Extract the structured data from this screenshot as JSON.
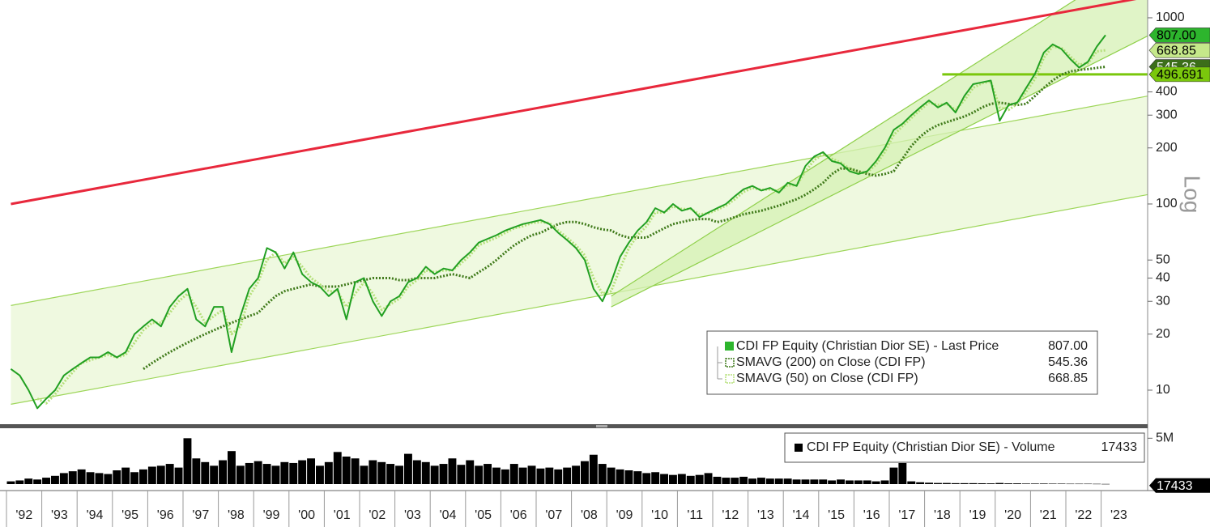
{
  "chart_data": [
    {
      "type": "line",
      "log_scale": true,
      "scale_label": "Log",
      "categories": [
        "'92",
        null,
        null,
        null,
        "'93",
        null,
        null,
        null,
        "'94",
        null,
        null,
        null,
        "'95",
        null,
        null,
        null,
        "'96",
        null,
        null,
        null,
        "'97",
        null,
        null,
        null,
        "'98",
        null,
        null,
        null,
        "'99",
        null,
        null,
        null,
        "'00",
        null,
        null,
        null,
        "'01",
        null,
        null,
        null,
        "'02",
        null,
        null,
        null,
        "'03",
        null,
        null,
        null,
        "'04",
        null,
        null,
        null,
        "'05",
        null,
        null,
        null,
        "'06",
        null,
        null,
        null,
        "'07",
        null,
        null,
        null,
        "'08",
        null,
        null,
        null,
        "'09",
        null,
        null,
        null,
        "'10",
        null,
        null,
        null,
        "'11",
        null,
        null,
        null,
        "'12",
        null,
        null,
        null,
        "'13",
        null,
        null,
        null,
        "'14",
        null,
        null,
        null,
        "'15",
        null,
        null,
        null,
        "'16",
        null,
        null,
        null,
        "'17",
        null,
        null,
        null,
        "'18",
        null,
        null,
        null,
        "'19",
        null,
        null,
        null,
        "'20",
        null,
        null,
        null,
        "'21",
        null,
        null,
        null,
        "'22",
        null,
        null,
        null,
        "'23"
      ],
      "ylim": [
        6.5,
        1246
      ],
      "yticks": [
        10,
        20,
        30,
        40,
        50,
        100,
        200,
        300,
        400,
        1000
      ],
      "series": [
        {
          "name": "CDI FP Equity (Christian Dior SE) - Last Price",
          "color": "#22a022",
          "label_color": "#2db52d",
          "label_text": "#000000",
          "last": {
            "value": 807,
            "label": "807.00"
          },
          "values": [
            13,
            12,
            10,
            8,
            9,
            10,
            12,
            13,
            14,
            15,
            15,
            16,
            15,
            16,
            20,
            22,
            24,
            22,
            28,
            32,
            35,
            24,
            22,
            28,
            28,
            16,
            25,
            35,
            40,
            58,
            55,
            45,
            55,
            42,
            38,
            36,
            32,
            35,
            24,
            38,
            40,
            30,
            25,
            30,
            32,
            38,
            40,
            46,
            42,
            45,
            44,
            50,
            55,
            62,
            65,
            68,
            72,
            75,
            78,
            80,
            82,
            78,
            70,
            64,
            58,
            50,
            35,
            30,
            38,
            52,
            62,
            72,
            80,
            95,
            90,
            100,
            92,
            95,
            85,
            90,
            95,
            100,
            110,
            120,
            125,
            118,
            122,
            115,
            130,
            125,
            160,
            180,
            190,
            170,
            165,
            150,
            145,
            150,
            170,
            200,
            250,
            270,
            300,
            330,
            360,
            330,
            350,
            310,
            380,
            440,
            450,
            460,
            280,
            340,
            350,
            420,
            500,
            650,
            720,
            680,
            600,
            540,
            580,
            700,
            807
          ]
        },
        {
          "name": "SMAVG (200)  on Close (CDI FP)",
          "color": "#3f7a1a",
          "dotted": true,
          "label_color": "#3c6e1a",
          "label_text": "#ffffff",
          "last": {
            "value": 545.36,
            "label": "545.36"
          },
          "values": [
            null,
            null,
            null,
            null,
            null,
            null,
            null,
            null,
            null,
            null,
            null,
            null,
            null,
            null,
            null,
            13,
            14,
            15,
            16,
            17,
            18,
            19,
            20,
            21,
            22,
            23,
            24,
            25,
            26,
            29,
            32,
            34,
            35,
            36,
            37,
            36,
            36,
            36,
            37,
            38,
            39,
            40,
            40,
            40,
            39,
            39,
            40,
            40,
            40,
            41,
            42,
            41,
            40,
            43,
            46,
            50,
            55,
            60,
            64,
            68,
            70,
            74,
            78,
            80,
            80,
            78,
            75,
            73,
            72,
            68,
            66,
            66,
            66,
            70,
            74,
            78,
            80,
            82,
            83,
            83,
            80,
            82,
            85,
            88,
            90,
            92,
            95,
            98,
            102,
            106,
            112,
            120,
            130,
            145,
            155,
            155,
            150,
            145,
            142,
            145,
            150,
            175,
            205,
            230,
            250,
            265,
            275,
            285,
            295,
            310,
            330,
            345,
            350,
            345,
            340,
            345,
            380,
            420,
            460,
            495,
            515,
            525,
            530,
            538,
            545.36
          ]
        },
        {
          "name": "SMAVG (50)  on Close (CDI FP)",
          "color": "#b5e07a",
          "dotted": true,
          "label_color": "#c5e88a",
          "label_text": "#000000",
          "last": {
            "value": 668.85,
            "label": "668.85"
          },
          "values": [
            null,
            null,
            null,
            9,
            8.5,
            9.5,
            11,
            12.5,
            14,
            14.5,
            15,
            15.5,
            15,
            15.5,
            18,
            21,
            23,
            23,
            26,
            30,
            33,
            28,
            23,
            25,
            27,
            20,
            22,
            32,
            38,
            50,
            55,
            48,
            52,
            46,
            40,
            37,
            34,
            34,
            28,
            33,
            38,
            33,
            27,
            29,
            31,
            36,
            39,
            44,
            43,
            44,
            44,
            48,
            53,
            60,
            63,
            66,
            70,
            74,
            76,
            79,
            80,
            79,
            72,
            66,
            60,
            53,
            40,
            33,
            34,
            45,
            58,
            68,
            76,
            90,
            90,
            97,
            94,
            94,
            88,
            89,
            93,
            98,
            106,
            116,
            122,
            119,
            120,
            117,
            126,
            126,
            150,
            172,
            185,
            175,
            167,
            155,
            147,
            148,
            163,
            190,
            235,
            262,
            290,
            320,
            350,
            340,
            345,
            320,
            360,
            420,
            445,
            455,
            330,
            320,
            345,
            400,
            470,
            610,
            700,
            690,
            620,
            560,
            570,
            660,
            668.85
          ]
        }
      ],
      "lines": [
        {
          "color": "#e8283c",
          "from": {
            "x": "'92",
            "y": 100
          },
          "to": {
            "x": "'23",
            "y": 1180
          }
        }
      ],
      "channels": [
        {
          "color": "#9ed65a",
          "fill": "#eaf7d6",
          "upper": {
            "from": {
              "x": "'92",
              "y": 28.5
            },
            "to": {
              "x": "'23",
              "y": 345
            }
          },
          "lower": {
            "from": {
              "x": "'92",
              "y": 8.4
            },
            "to": {
              "x": "'23",
              "y": 102
            }
          }
        },
        {
          "color": "#8fd04a",
          "fill": "#d6f0b4",
          "upper": {
            "from": {
              "x": "'09",
              "y": 32
            },
            "to": {
              "x": "'23",
              "y": 1585
            }
          },
          "lower": {
            "from": {
              "x": "'09",
              "y": 28
            },
            "to": {
              "x": "'23",
              "y": 614
            }
          }
        }
      ],
      "level": {
        "value": 496.691,
        "label": "496.691",
        "from": "'18",
        "color": "#7ac70c"
      }
    },
    {
      "type": "bar",
      "ylim": [
        0,
        6000000
      ],
      "yticks": [
        {
          "value": 5000000,
          "label": "5M"
        }
      ],
      "series": [
        {
          "name": "CDI FP Equity (Christian Dior SE) - Volume",
          "color": "#000000",
          "last": {
            "value": 17433,
            "label": "17433"
          },
          "values": [
            300000,
            400000,
            600000,
            500000,
            700000,
            900000,
            1200000,
            1400000,
            1600000,
            1300000,
            1200000,
            1100000,
            1500000,
            1800000,
            1300000,
            1600000,
            1900000,
            2000000,
            2200000,
            1800000,
            5000000,
            2800000,
            2400000,
            2000000,
            2600000,
            3600000,
            2000000,
            2300000,
            2500000,
            2200000,
            2000000,
            2400000,
            2300000,
            2600000,
            2800000,
            2000000,
            2400000,
            3500000,
            3000000,
            2800000,
            2000000,
            2600000,
            2400000,
            2200000,
            2000000,
            3300000,
            2600000,
            2400000,
            2000000,
            2200000,
            2800000,
            2100000,
            2600000,
            2000000,
            2200000,
            1800000,
            1600000,
            2200000,
            1800000,
            2000000,
            1700000,
            1800000,
            1600000,
            1800000,
            2000000,
            2500000,
            3200000,
            2200000,
            1800000,
            1600000,
            1500000,
            1400000,
            1200000,
            1300000,
            1100000,
            1000000,
            1100000,
            900000,
            1000000,
            1200000,
            800000,
            700000,
            700000,
            800000,
            600000,
            700000,
            600000,
            600000,
            600000,
            500000,
            500000,
            500000,
            500000,
            400000,
            500000,
            400000,
            400000,
            400000,
            300000,
            400000,
            1800000,
            2300000,
            300000,
            200000,
            150000,
            120000,
            120000,
            100000,
            100000,
            100000,
            90000,
            80000,
            120000,
            80000,
            80000,
            60000,
            60000,
            60000,
            50000,
            50000,
            40000,
            40000,
            40000,
            30000,
            17433
          ]
        }
      ]
    }
  ]
}
